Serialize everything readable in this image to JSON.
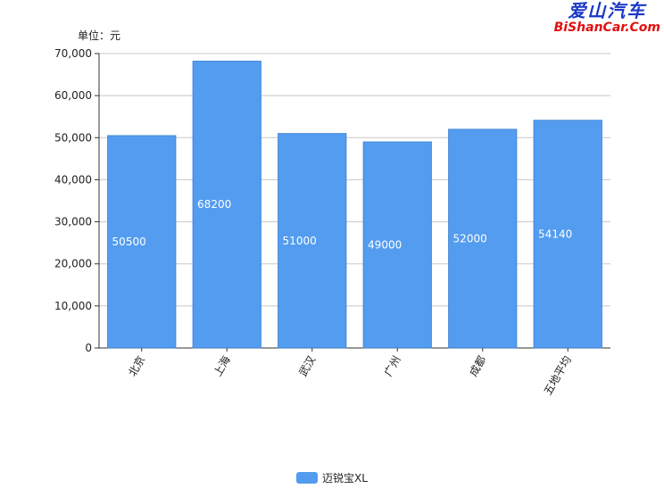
{
  "watermark": {
    "cn": "爱山汽车",
    "en": "BiShanCar.Com"
  },
  "unit_label": "单位：元",
  "chart_data": {
    "type": "bar",
    "categories": [
      "北京",
      "上海",
      "武汉",
      "广州",
      "成都",
      "五地平均"
    ],
    "series": [
      {
        "name": "迈锐宝XL",
        "values": [
          50500,
          68200,
          51000,
          49000,
          52000,
          54140
        ],
        "color": "#539cef"
      }
    ],
    "data_labels": [
      "50500",
      "68200",
      "51000",
      "49000",
      "52000",
      "54140"
    ],
    "y_ticks": [
      "0",
      "10,000",
      "20,000",
      "30,000",
      "40,000",
      "50,000",
      "60,000",
      "70,000"
    ],
    "ylim": [
      0,
      70000
    ],
    "grid": true,
    "legend_position": "bottom"
  }
}
